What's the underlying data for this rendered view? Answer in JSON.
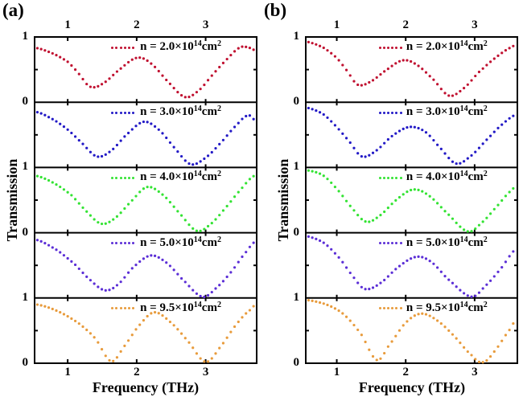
{
  "chart_data": [
    {
      "type": "line",
      "panel_label": "(a)",
      "xlabel": "Frequency (THz)",
      "ylabel": "Transmission",
      "layout_note": "5 vertically stacked subplots sharing the frequency axis, dotted curves, legend inside top of each subplot",
      "xlim": [
        0.52,
        3.74
      ],
      "ylim_per_subplot": [
        0,
        1
      ],
      "x_ticks": [
        1,
        2,
        3
      ],
      "y_tick_labels": [
        "1",
        "0",
        "1",
        "0",
        "1",
        "0"
      ],
      "grid": false,
      "marker": "dot",
      "series": [
        {
          "label": "n = 2.0×10¹⁴cm²",
          "label_pre": "n = 2.0×10",
          "label_sup": "14",
          "label_unit": "cm",
          "label_unit_sup": "2",
          "color": "#C01030",
          "anchors": [
            [
              0.55,
              0.83
            ],
            [
              0.8,
              0.74
            ],
            [
              1.0,
              0.62
            ],
            [
              1.15,
              0.45
            ],
            [
              1.32,
              0.24
            ],
            [
              1.5,
              0.28
            ],
            [
              1.75,
              0.5
            ],
            [
              2.0,
              0.68
            ],
            [
              2.2,
              0.6
            ],
            [
              2.45,
              0.32
            ],
            [
              2.7,
              0.08
            ],
            [
              2.9,
              0.18
            ],
            [
              3.1,
              0.42
            ],
            [
              3.3,
              0.65
            ],
            [
              3.5,
              0.84
            ],
            [
              3.65,
              0.83
            ],
            [
              3.74,
              0.78
            ]
          ]
        },
        {
          "label": "n = 3.0×10¹⁴cm²",
          "label_pre": "n = 3.0×10",
          "label_sup": "14",
          "label_unit": "cm",
          "label_unit_sup": "2",
          "color": "#2219C6",
          "anchors": [
            [
              0.55,
              0.85
            ],
            [
              0.8,
              0.73
            ],
            [
              1.0,
              0.58
            ],
            [
              1.2,
              0.38
            ],
            [
              1.42,
              0.17
            ],
            [
              1.62,
              0.25
            ],
            [
              1.85,
              0.5
            ],
            [
              2.1,
              0.7
            ],
            [
              2.32,
              0.58
            ],
            [
              2.55,
              0.3
            ],
            [
              2.78,
              0.05
            ],
            [
              3.0,
              0.15
            ],
            [
              3.22,
              0.38
            ],
            [
              3.45,
              0.65
            ],
            [
              3.62,
              0.8
            ],
            [
              3.74,
              0.7
            ]
          ]
        },
        {
          "label": "n = 4.0×10¹⁴cm²",
          "label_pre": "n = 4.0×10",
          "label_sup": "14",
          "label_unit": "cm",
          "label_unit_sup": "2",
          "color": "#33E333",
          "anchors": [
            [
              0.55,
              0.87
            ],
            [
              0.8,
              0.76
            ],
            [
              1.05,
              0.58
            ],
            [
              1.25,
              0.35
            ],
            [
              1.48,
              0.14
            ],
            [
              1.68,
              0.22
            ],
            [
              1.92,
              0.48
            ],
            [
              2.15,
              0.7
            ],
            [
              2.38,
              0.58
            ],
            [
              2.62,
              0.3
            ],
            [
              2.87,
              0.03
            ],
            [
              3.07,
              0.13
            ],
            [
              3.27,
              0.36
            ],
            [
              3.5,
              0.65
            ],
            [
              3.7,
              0.87
            ],
            [
              3.74,
              0.88
            ]
          ]
        },
        {
          "label": "n = 5.0×10¹⁴cm²",
          "label_pre": "n = 5.0×10",
          "label_sup": "14",
          "label_unit": "cm",
          "label_unit_sup": "2",
          "color": "#5B2ED6",
          "anchors": [
            [
              0.55,
              0.89
            ],
            [
              0.85,
              0.73
            ],
            [
              1.1,
              0.52
            ],
            [
              1.3,
              0.3
            ],
            [
              1.53,
              0.12
            ],
            [
              1.72,
              0.2
            ],
            [
              1.95,
              0.47
            ],
            [
              2.2,
              0.65
            ],
            [
              2.42,
              0.55
            ],
            [
              2.65,
              0.3
            ],
            [
              2.95,
              0.02
            ],
            [
              3.15,
              0.15
            ],
            [
              3.37,
              0.4
            ],
            [
              3.6,
              0.72
            ],
            [
              3.74,
              0.88
            ]
          ]
        },
        {
          "label": "n = 9.5×10¹⁴cm²",
          "label_pre": "n = 9.5×10",
          "label_sup": "14",
          "label_unit": "cm",
          "label_unit_sup": "2",
          "color": "#E89B3C",
          "anchors": [
            [
              0.55,
              0.9
            ],
            [
              0.85,
              0.8
            ],
            [
              1.15,
              0.62
            ],
            [
              1.4,
              0.38
            ],
            [
              1.63,
              0.03
            ],
            [
              1.82,
              0.26
            ],
            [
              2.02,
              0.56
            ],
            [
              2.25,
              0.78
            ],
            [
              2.5,
              0.62
            ],
            [
              2.75,
              0.33
            ],
            [
              3.0,
              0.02
            ],
            [
              3.22,
              0.26
            ],
            [
              3.45,
              0.6
            ],
            [
              3.65,
              0.82
            ],
            [
              3.74,
              0.9
            ]
          ]
        }
      ]
    },
    {
      "type": "line",
      "panel_label": "(b)",
      "xlabel": "Frequency (THz)",
      "ylabel": "Transmission",
      "layout_note": "5 vertically stacked subplots sharing the frequency axis, dotted curves, legend inside top of each subplot",
      "xlim": [
        0.55,
        3.62
      ],
      "ylim_per_subplot": [
        0,
        1
      ],
      "x_ticks": [
        1,
        2,
        3
      ],
      "y_tick_labels": [
        "1",
        "0",
        "1",
        "0",
        "1",
        "0"
      ],
      "grid": false,
      "marker": "dot",
      "series": [
        {
          "label": "n = 2.0×10¹⁴cm²",
          "label_pre": "n = 2.0×10",
          "label_sup": "14",
          "label_unit": "cm",
          "label_unit_sup": "2",
          "color": "#C01030",
          "anchors": [
            [
              0.55,
              0.93
            ],
            [
              0.8,
              0.84
            ],
            [
              1.0,
              0.68
            ],
            [
              1.15,
              0.48
            ],
            [
              1.3,
              0.27
            ],
            [
              1.48,
              0.31
            ],
            [
              1.7,
              0.48
            ],
            [
              1.95,
              0.64
            ],
            [
              2.15,
              0.58
            ],
            [
              2.4,
              0.35
            ],
            [
              2.63,
              0.1
            ],
            [
              2.85,
              0.22
            ],
            [
              3.05,
              0.45
            ],
            [
              3.3,
              0.68
            ],
            [
              3.55,
              0.85
            ],
            [
              3.62,
              0.87
            ]
          ]
        },
        {
          "label": "n = 3.0×10¹⁴cm²",
          "label_pre": "n = 3.0×10",
          "label_sup": "14",
          "label_unit": "cm",
          "label_unit_sup": "2",
          "color": "#2219C6",
          "anchors": [
            [
              0.55,
              0.92
            ],
            [
              0.8,
              0.82
            ],
            [
              1.0,
              0.62
            ],
            [
              1.18,
              0.4
            ],
            [
              1.36,
              0.17
            ],
            [
              1.56,
              0.25
            ],
            [
              1.8,
              0.48
            ],
            [
              2.05,
              0.62
            ],
            [
              2.28,
              0.55
            ],
            [
              2.5,
              0.3
            ],
            [
              2.73,
              0.06
            ],
            [
              2.95,
              0.18
            ],
            [
              3.15,
              0.4
            ],
            [
              3.4,
              0.66
            ],
            [
              3.62,
              0.82
            ]
          ]
        },
        {
          "label": "n = 4.0×10¹⁴cm²",
          "label_pre": "n = 4.0×10",
          "label_sup": "14",
          "label_unit": "cm",
          "label_unit_sup": "2",
          "color": "#33E333",
          "anchors": [
            [
              0.55,
              0.96
            ],
            [
              0.8,
              0.88
            ],
            [
              1.02,
              0.65
            ],
            [
              1.22,
              0.38
            ],
            [
              1.42,
              0.17
            ],
            [
              1.62,
              0.26
            ],
            [
              1.86,
              0.5
            ],
            [
              2.1,
              0.66
            ],
            [
              2.32,
              0.58
            ],
            [
              2.6,
              0.3
            ],
            [
              2.9,
              0.02
            ],
            [
              3.1,
              0.15
            ],
            [
              3.3,
              0.38
            ],
            [
              3.55,
              0.66
            ],
            [
              3.62,
              0.7
            ]
          ]
        },
        {
          "label": "n = 5.0×10¹⁴cm²",
          "label_pre": "n = 5.0×10",
          "label_sup": "14",
          "label_unit": "cm",
          "label_unit_sup": "2",
          "color": "#5B2ED6",
          "anchors": [
            [
              0.55,
              0.95
            ],
            [
              0.82,
              0.84
            ],
            [
              1.05,
              0.6
            ],
            [
              1.22,
              0.35
            ],
            [
              1.4,
              0.14
            ],
            [
              1.62,
              0.22
            ],
            [
              1.9,
              0.48
            ],
            [
              2.15,
              0.63
            ],
            [
              2.36,
              0.56
            ],
            [
              2.6,
              0.3
            ],
            [
              2.95,
              0.02
            ],
            [
              3.15,
              0.18
            ],
            [
              3.38,
              0.45
            ],
            [
              3.6,
              0.75
            ],
            [
              3.62,
              0.76
            ]
          ]
        },
        {
          "label": "n = 9.5×10¹⁴cm²",
          "label_pre": "n = 9.5×10",
          "label_sup": "14",
          "label_unit": "cm",
          "label_unit_sup": "2",
          "color": "#E89B3C",
          "anchors": [
            [
              0.55,
              0.97
            ],
            [
              0.85,
              0.9
            ],
            [
              1.1,
              0.75
            ],
            [
              1.35,
              0.45
            ],
            [
              1.58,
              0.05
            ],
            [
              1.76,
              0.28
            ],
            [
              2.0,
              0.62
            ],
            [
              2.22,
              0.76
            ],
            [
              2.45,
              0.66
            ],
            [
              2.7,
              0.42
            ],
            [
              2.95,
              0.13
            ],
            [
              3.12,
              0.01
            ],
            [
              3.3,
              0.2
            ],
            [
              3.5,
              0.5
            ],
            [
              3.62,
              0.68
            ]
          ]
        }
      ]
    }
  ]
}
